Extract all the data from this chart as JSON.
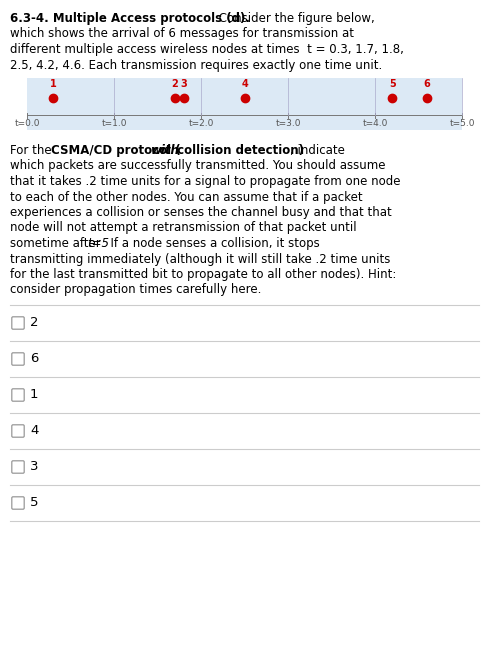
{
  "timeline_bg_color": "#dce9f5",
  "timeline_ticks": [
    0.0,
    1.0,
    2.0,
    3.0,
    4.0,
    5.0
  ],
  "timeline_tick_labels": [
    "t=0.0",
    "t=1.0",
    "t=2.0",
    "t=3.0",
    "t=4.0",
    "t=5.0"
  ],
  "messages": [
    {
      "id": "1",
      "time": 0.3
    },
    {
      "id": "2",
      "time": 1.7
    },
    {
      "id": "3",
      "time": 1.8
    },
    {
      "id": "4",
      "time": 2.5
    },
    {
      "id": "5",
      "time": 4.2
    },
    {
      "id": "6",
      "time": 4.6
    }
  ],
  "dot_color": "#cc0000",
  "label_color": "#cc0000",
  "checkbox_items": [
    "2",
    "6",
    "1",
    "4",
    "3",
    "5"
  ],
  "checkbox_color": "#999999",
  "separator_color": "#cccccc",
  "bg_color": "#ffffff",
  "para1_lines": [
    {
      "segments": [
        {
          "text": "6.3-4. Multiple Access protocols (d).",
          "bold": true,
          "italic": false
        },
        {
          "text": " Consider the figure below,",
          "bold": false,
          "italic": false
        }
      ]
    },
    {
      "segments": [
        {
          "text": "which shows the arrival of 6 messages for transmission at",
          "bold": false,
          "italic": false
        }
      ]
    },
    {
      "segments": [
        {
          "text": "different multiple access wireless nodes at times  t = 0.3, 1.7, 1.8,",
          "bold": false,
          "italic": false
        }
      ]
    },
    {
      "segments": [
        {
          "text": "2.5, 4.2, 4.6. Each transmission requires exactly one time unit.",
          "bold": false,
          "italic": false
        }
      ]
    }
  ],
  "para2_lines": [
    {
      "segments": [
        {
          "text": "For the ",
          "bold": false,
          "italic": false
        },
        {
          "text": "CSMA/CD protocol (",
          "bold": true,
          "italic": false
        },
        {
          "text": "with",
          "bold": true,
          "italic": true
        },
        {
          "text": " collision detection)",
          "bold": true,
          "italic": false
        },
        {
          "text": ", indicate",
          "bold": false,
          "italic": false
        }
      ]
    },
    {
      "segments": [
        {
          "text": "which packets are successfully transmitted. You should assume",
          "bold": false,
          "italic": false
        }
      ]
    },
    {
      "segments": [
        {
          "text": "that it takes .2 time units for a signal to propagate from one node",
          "bold": false,
          "italic": false
        }
      ]
    },
    {
      "segments": [
        {
          "text": "to each of the other nodes. You can assume that if a packet",
          "bold": false,
          "italic": false
        }
      ]
    },
    {
      "segments": [
        {
          "text": "experiences a collision or senses the channel busy and that that",
          "bold": false,
          "italic": false
        }
      ]
    },
    {
      "segments": [
        {
          "text": "node will not attempt a retransmission of that packet until",
          "bold": false,
          "italic": false
        }
      ]
    },
    {
      "segments": [
        {
          "text": "sometime after ",
          "bold": false,
          "italic": false
        },
        {
          "text": "t=5",
          "bold": false,
          "italic": true
        },
        {
          "text": ". If a node senses a collision, it stops",
          "bold": false,
          "italic": false
        }
      ]
    },
    {
      "segments": [
        {
          "text": "transmitting immediately (although it will still take .2 time units",
          "bold": false,
          "italic": false
        }
      ]
    },
    {
      "segments": [
        {
          "text": "for the last transmitted bit to propagate to all other nodes). Hint:",
          "bold": false,
          "italic": false
        }
      ]
    },
    {
      "segments": [
        {
          "text": "consider propagation times carefully here.",
          "bold": false,
          "italic": false
        }
      ]
    }
  ]
}
